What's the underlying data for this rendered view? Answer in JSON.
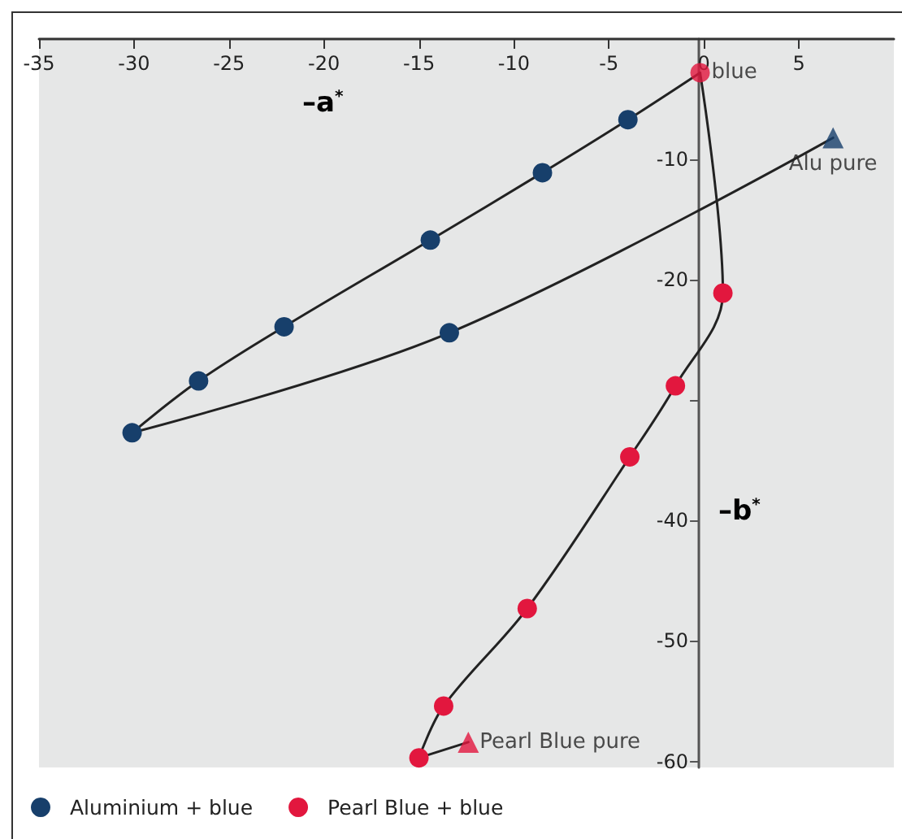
{
  "chart_data": {
    "type": "line",
    "xlabel": "–a$^{*}$",
    "ylabel": "–b$^{*}$",
    "xlim": [
      -35,
      10
    ],
    "xticks": [
      -35,
      -30,
      -25,
      -20,
      -15,
      -10,
      -5,
      0,
      5
    ],
    "ylim": [
      -60.5,
      0
    ],
    "yticks": [
      -60,
      -50,
      -40,
      {
        "value": -30,
        "label": null
      },
      -20,
      -10
    ],
    "grid": false,
    "legend": "bottom left",
    "marker": "circle",
    "line_style": "solid",
    "series": [
      {
        "name": "Aluminium + blue",
        "color": "#173f6b",
        "x": [
          -0.2,
          -4.0,
          -8.5,
          -14.4,
          -22.1,
          -26.6,
          -30.1,
          -13.4,
          6.8
        ],
        "values": [
          -2.8,
          -6.7,
          -11.1,
          -16.7,
          -23.9,
          -28.4,
          -32.7,
          -24.4,
          -8.2
        ]
      },
      {
        "name": "Pearl Blue + blue",
        "color": "#e2173e",
        "x": [
          -0.2,
          1.0,
          -1.5,
          -3.9,
          -9.3,
          -13.7,
          -15.0,
          -12.4
        ],
        "values": [
          -2.8,
          -21.1,
          -28.8,
          -34.7,
          -47.3,
          -55.4,
          -59.7,
          -58.4
        ]
      },
      {
        "type": "scatter",
        "marker": "circle",
        "color": "#e2173e",
        "x": [
          -0.2
        ],
        "values": [
          -2.8
        ]
      },
      {
        "type": "scatter",
        "marker": "triangle",
        "color": "#173f6b",
        "x": [
          6.8
        ],
        "values": [
          -8.2
        ]
      },
      {
        "type": "scatter",
        "marker": "triangle",
        "color": "#e2173e",
        "x": [
          -12.4
        ],
        "values": [
          -58.4
        ]
      }
    ],
    "annotations": [
      {
        "text": "blue",
        "x": -0.2,
        "y": -2.8
      },
      {
        "text": "Alu pure",
        "x": 6.8,
        "y": -8.2
      },
      {
        "text": "Pearl Blue pure",
        "x": -12.4,
        "y": -58.4
      }
    ]
  }
}
